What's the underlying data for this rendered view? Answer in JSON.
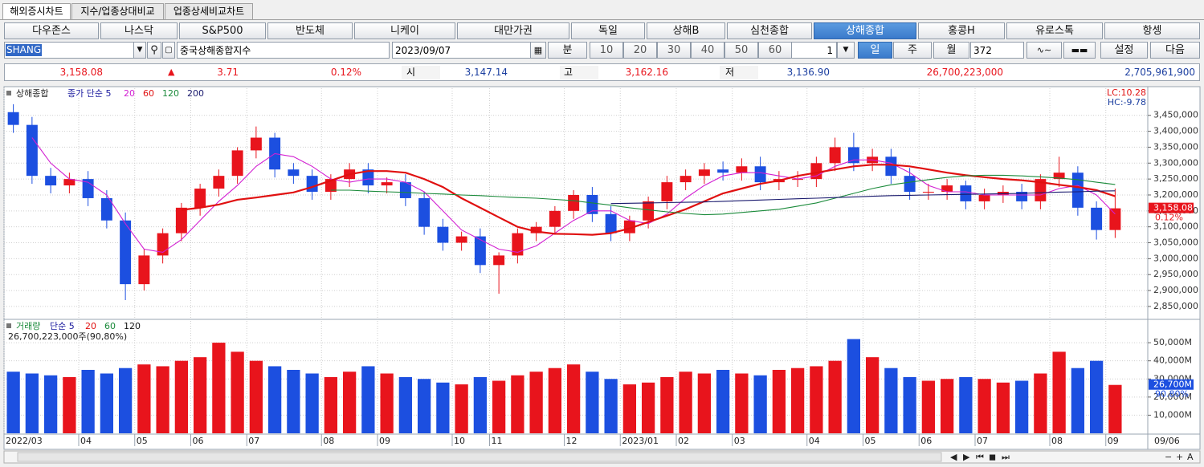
{
  "ui": {
    "tabs": [
      "해외증시차트",
      "지수/업종상대비교",
      "업종상세비교차트"
    ],
    "tab_selected": 0,
    "markets": [
      "다우존스",
      "나스닥",
      "S&P500",
      "반도체",
      "니케이",
      "대만가권",
      "독일",
      "상해B",
      "심천종합",
      "상해종합",
      "홍콩H",
      "유로스톡",
      "항셍"
    ],
    "market_selected": 9,
    "toolbar": {
      "code": "SHANG",
      "name": "중국상해종합지수",
      "date": "2023/09/07",
      "minute": "분",
      "periods": [
        "10",
        "20",
        "30",
        "40",
        "50",
        "60"
      ],
      "count": "1",
      "day": "일",
      "week": "주",
      "month": "월",
      "bars": "372",
      "settings": "설정",
      "next": "다음"
    },
    "quote": {
      "price": "3,158.08",
      "change": "3.71",
      "change_pct": "0.12%",
      "open_label": "시",
      "open": "3,147.14",
      "high_label": "고",
      "high": "3,162.16",
      "low_label": "저",
      "low": "3,136.90",
      "volume": "26,700,223,000",
      "amount": "2,705,961,900"
    }
  },
  "chart_data": [
    {
      "type": "candlestick",
      "title": "상해종합",
      "ma_label": "종가 단순 5",
      "open": [
        3460,
        3420,
        3260,
        3230,
        3250,
        3190,
        3120,
        2920,
        3010,
        3080,
        3160,
        3220,
        3260,
        3340,
        3380,
        3280,
        3260,
        3210,
        3250,
        3280,
        3230,
        3240,
        3190,
        3100,
        3050,
        3070,
        2980,
        3010,
        3080,
        3100,
        3150,
        3200,
        3140,
        3080,
        3120,
        3180,
        3240,
        3260,
        3280,
        3270,
        3290,
        3240,
        3250,
        3250,
        3300,
        3350,
        3300,
        3320,
        3260,
        3210,
        3210,
        3230,
        3180,
        3200,
        3210,
        3180,
        3250,
        3270,
        3160,
        3090
      ],
      "high": [
        3485,
        3445,
        3285,
        3270,
        3275,
        3215,
        3145,
        3030,
        3095,
        3175,
        3235,
        3280,
        3350,
        3415,
        3395,
        3300,
        3280,
        3265,
        3300,
        3300,
        3255,
        3265,
        3210,
        3125,
        3085,
        3095,
        3020,
        3095,
        3115,
        3165,
        3215,
        3225,
        3165,
        3135,
        3195,
        3260,
        3280,
        3300,
        3305,
        3315,
        3320,
        3275,
        3275,
        3320,
        3380,
        3395,
        3345,
        3345,
        3285,
        3235,
        3250,
        3245,
        3220,
        3230,
        3235,
        3265,
        3320,
        3290,
        3180,
        3220
      ],
      "low": [
        3395,
        3235,
        3205,
        3205,
        3165,
        3095,
        2870,
        2900,
        2985,
        3055,
        3135,
        3195,
        3235,
        3315,
        3255,
        3235,
        3185,
        3185,
        3225,
        3205,
        3205,
        3165,
        3075,
        3025,
        3025,
        2955,
        2890,
        2985,
        3055,
        3075,
        3125,
        3115,
        3055,
        3055,
        3095,
        3155,
        3215,
        3235,
        3245,
        3245,
        3215,
        3215,
        3225,
        3225,
        3275,
        3275,
        3275,
        3235,
        3185,
        3185,
        3185,
        3155,
        3155,
        3175,
        3155,
        3155,
        3225,
        3135,
        3060,
        3065
      ],
      "close": [
        3420,
        3260,
        3230,
        3250,
        3190,
        3120,
        2920,
        3010,
        3080,
        3160,
        3220,
        3260,
        3340,
        3380,
        3280,
        3260,
        3210,
        3250,
        3280,
        3230,
        3240,
        3190,
        3100,
        3050,
        3070,
        2980,
        3010,
        3080,
        3100,
        3150,
        3200,
        3140,
        3080,
        3120,
        3180,
        3240,
        3260,
        3280,
        3270,
        3290,
        3240,
        3250,
        3250,
        3300,
        3350,
        3300,
        3320,
        3260,
        3210,
        3210,
        3230,
        3180,
        3200,
        3210,
        3180,
        3250,
        3270,
        3160,
        3090,
        3158.08
      ],
      "up_color": "#e8141c",
      "down_color": "#1c4fe0",
      "series": [
        {
          "name": "20",
          "color": "#d21fd2",
          "values": [
            null,
            3380,
            3300,
            3250,
            3240,
            3200,
            3110,
            3030,
            3020,
            3060,
            3120,
            3180,
            3230,
            3290,
            3330,
            3320,
            3290,
            3250,
            3240,
            3250,
            3250,
            3240,
            3210,
            3150,
            3090,
            3060,
            3030,
            3020,
            3040,
            3080,
            3120,
            3150,
            3150,
            3120,
            3110,
            3140,
            3190,
            3230,
            3260,
            3270,
            3270,
            3260,
            3250,
            3260,
            3290,
            3310,
            3310,
            3300,
            3270,
            3230,
            3210,
            3210,
            3200,
            3200,
            3200,
            3200,
            3220,
            3230,
            3200,
            3140
          ]
        },
        {
          "name": "60",
          "color": "#e01010",
          "values": [
            null,
            null,
            null,
            null,
            null,
            null,
            null,
            null,
            null,
            3153,
            3160,
            3170,
            3185,
            3192,
            3200,
            3208,
            3225,
            3245,
            3265,
            3275,
            3275,
            3270,
            3250,
            3225,
            3190,
            3160,
            3130,
            3100,
            3085,
            3078,
            3077,
            3075,
            3080,
            3095,
            3115,
            3135,
            3155,
            3180,
            3205,
            3220,
            3235,
            3245,
            3260,
            3270,
            3280,
            3290,
            3295,
            3295,
            3290,
            3280,
            3270,
            3262,
            3256,
            3250,
            3246,
            3240,
            3232,
            3225,
            3215,
            3196
          ]
        },
        {
          "name": "120",
          "color": "#1a8a3a",
          "values": [
            null,
            null,
            null,
            null,
            null,
            null,
            null,
            null,
            null,
            null,
            null,
            null,
            null,
            null,
            null,
            null,
            null,
            3215,
            3215,
            3212,
            3210,
            3208,
            3205,
            3203,
            3200,
            3198,
            3195,
            3192,
            3190,
            3186,
            3182,
            3175,
            3168,
            3160,
            3153,
            3147,
            3142,
            3138,
            3140,
            3145,
            3150,
            3155,
            3165,
            3175,
            3190,
            3205,
            3220,
            3232,
            3240,
            3248,
            3255,
            3260,
            3262,
            3262,
            3260,
            3257,
            3253,
            3248,
            3240,
            3233
          ]
        },
        {
          "name": "200",
          "color": "#1a1a6e",
          "values": [
            null,
            null,
            null,
            null,
            null,
            null,
            null,
            null,
            null,
            null,
            null,
            null,
            null,
            null,
            null,
            null,
            null,
            null,
            null,
            null,
            null,
            null,
            null,
            null,
            null,
            null,
            null,
            null,
            null,
            null,
            null,
            null,
            3173,
            3174,
            3175,
            3176,
            3177,
            3178,
            3180,
            3182,
            3184,
            3186,
            3188,
            3190,
            3192,
            3194,
            3196,
            3198,
            3199,
            3200,
            3201,
            3202,
            3203,
            3204,
            3205,
            3207,
            3209,
            3210,
            3212,
            3213
          ]
        }
      ],
      "ylim": [
        2812,
        3535
      ],
      "yticks": [
        {
          "value": 2850,
          "label": "2,850,000"
        },
        {
          "value": 2900,
          "label": "2,900,000"
        },
        {
          "value": 2950,
          "label": "2,950,000"
        },
        {
          "value": 3000,
          "label": "3,000,000"
        },
        {
          "value": 3050,
          "label": "3,050,000"
        },
        {
          "value": 3100,
          "label": "3,100,000"
        },
        {
          "value": 3150,
          "label": "3,150,000"
        },
        {
          "value": 3200,
          "label": "3,200,000"
        },
        {
          "value": 3250,
          "label": "3,250,000"
        },
        {
          "value": 3300,
          "label": "3,300,000"
        },
        {
          "value": 3350,
          "label": "3,350,000"
        },
        {
          "value": 3400,
          "label": "3,400,000"
        },
        {
          "value": 3450,
          "label": "3,450,000"
        }
      ],
      "grid": true,
      "lc_label": "LC:10.28",
      "hc_label": "HC:-9.78",
      "last_label": "3,158.08",
      "pct_label": "0.12%"
    },
    {
      "type": "bar",
      "title": "거래량",
      "ma_label": "단순 5",
      "legend": [
        "20",
        "60",
        "120"
      ],
      "legend_colors": [
        "#e01010",
        "#1a8a3a",
        "#111111"
      ],
      "summary": "26,700,223,000주(90,80%)",
      "categories": [
        "2022/03",
        null,
        null,
        null,
        "04",
        null,
        null,
        "05",
        null,
        null,
        "06",
        null,
        null,
        "07",
        null,
        null,
        null,
        "08",
        null,
        null,
        "09",
        null,
        null,
        null,
        "10",
        null,
        "11",
        null,
        null,
        null,
        "12",
        null,
        null,
        "2023/01",
        null,
        null,
        "02",
        null,
        null,
        "03",
        null,
        null,
        null,
        "04",
        null,
        null,
        "05",
        null,
        null,
        "06",
        null,
        null,
        "07",
        null,
        null,
        null,
        "08",
        null,
        null,
        "09"
      ],
      "values": [
        34000,
        33000,
        32000,
        31000,
        35000,
        33000,
        36000,
        38000,
        37000,
        40000,
        42000,
        50000,
        45000,
        40000,
        37000,
        35000,
        33000,
        31000,
        34000,
        37000,
        33000,
        31000,
        30000,
        28000,
        27000,
        31000,
        29000,
        32000,
        34000,
        36000,
        38000,
        34000,
        30000,
        27000,
        28000,
        31000,
        34000,
        33000,
        35000,
        33000,
        32000,
        35000,
        36000,
        37000,
        40000,
        52000,
        42000,
        36000,
        31000,
        29000,
        30000,
        31000,
        30000,
        28000,
        29000,
        33000,
        45000,
        36000,
        40000,
        26700.223
      ],
      "ylim": [
        0,
        62000
      ],
      "yticks": [
        {
          "value": 10000,
          "label": "10,000M"
        },
        {
          "value": 20000,
          "label": "20,000M"
        },
        {
          "value": 30000,
          "label": "30,000M"
        },
        {
          "value": 40000,
          "label": "40,000M"
        },
        {
          "value": 50000,
          "label": "50,000M"
        }
      ],
      "grid": true,
      "last_label": "26,700M",
      "ratio_label": "90.80%",
      "cursor_label": "09/06"
    }
  ]
}
